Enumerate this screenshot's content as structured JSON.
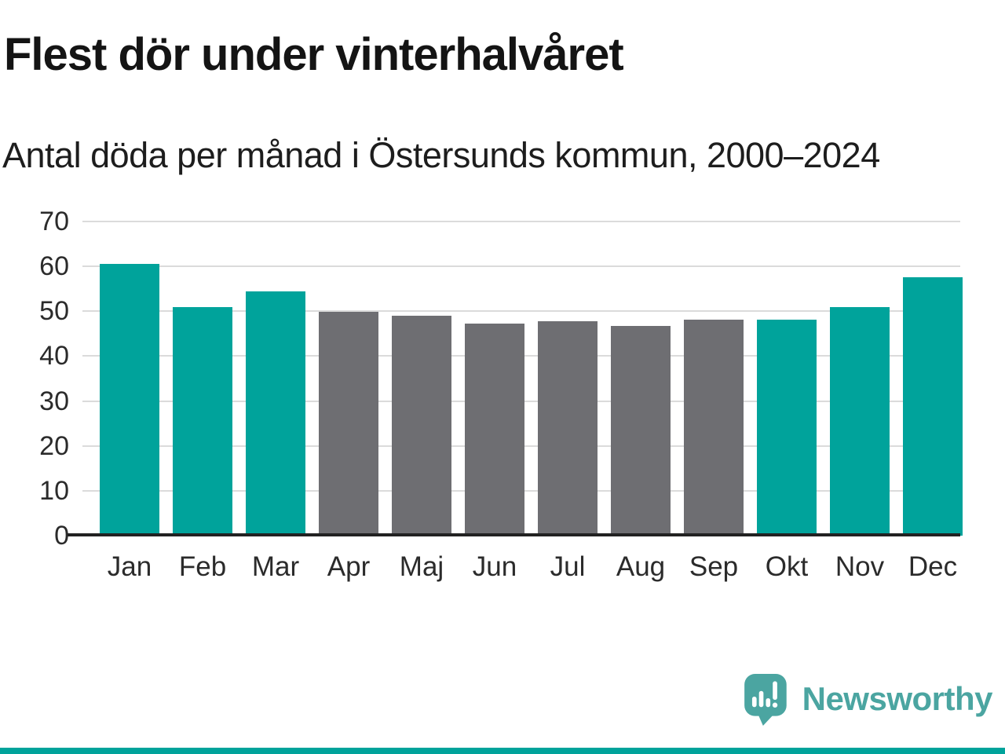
{
  "title": "Flest dör under vinterhalvåret",
  "subtitle": "Antal döda per månad i Östersunds kommun, 2000–2024",
  "colors": {
    "highlight_teal": "#00A39B",
    "muted_gray": "#6E6E72",
    "gridline": "#DBDBDB",
    "axis_line": "#222222",
    "tick_text": "#2B2B2B",
    "title_text": "#141414",
    "logo_teal": "#4BA5A1",
    "footer_strip": "#00A39B"
  },
  "chart_data": {
    "type": "bar",
    "title": "Flest dör under vinterhalvåret",
    "subtitle": "Antal döda per månad i Östersunds kommun, 2000–2024",
    "categories": [
      "Jan",
      "Feb",
      "Mar",
      "Apr",
      "Maj",
      "Jun",
      "Jul",
      "Aug",
      "Sep",
      "Okt",
      "Nov",
      "Dec"
    ],
    "values": [
      60.6,
      51.0,
      54.4,
      49.8,
      49.0,
      47.3,
      47.8,
      46.8,
      48.1,
      48.1,
      50.9,
      57.6
    ],
    "highlighted": [
      true,
      true,
      true,
      false,
      false,
      false,
      false,
      false,
      false,
      true,
      true,
      true
    ],
    "xlabel": "",
    "ylabel": "",
    "ylim": [
      0,
      70
    ],
    "yticks": [
      0,
      10,
      20,
      30,
      40,
      50,
      60,
      70
    ],
    "grid": "horizontal",
    "legend": "none"
  },
  "branding": {
    "logo_text": "Newsworthy",
    "logo_icon": "newsworthy-speech-bubble-bar-chart-icon"
  }
}
